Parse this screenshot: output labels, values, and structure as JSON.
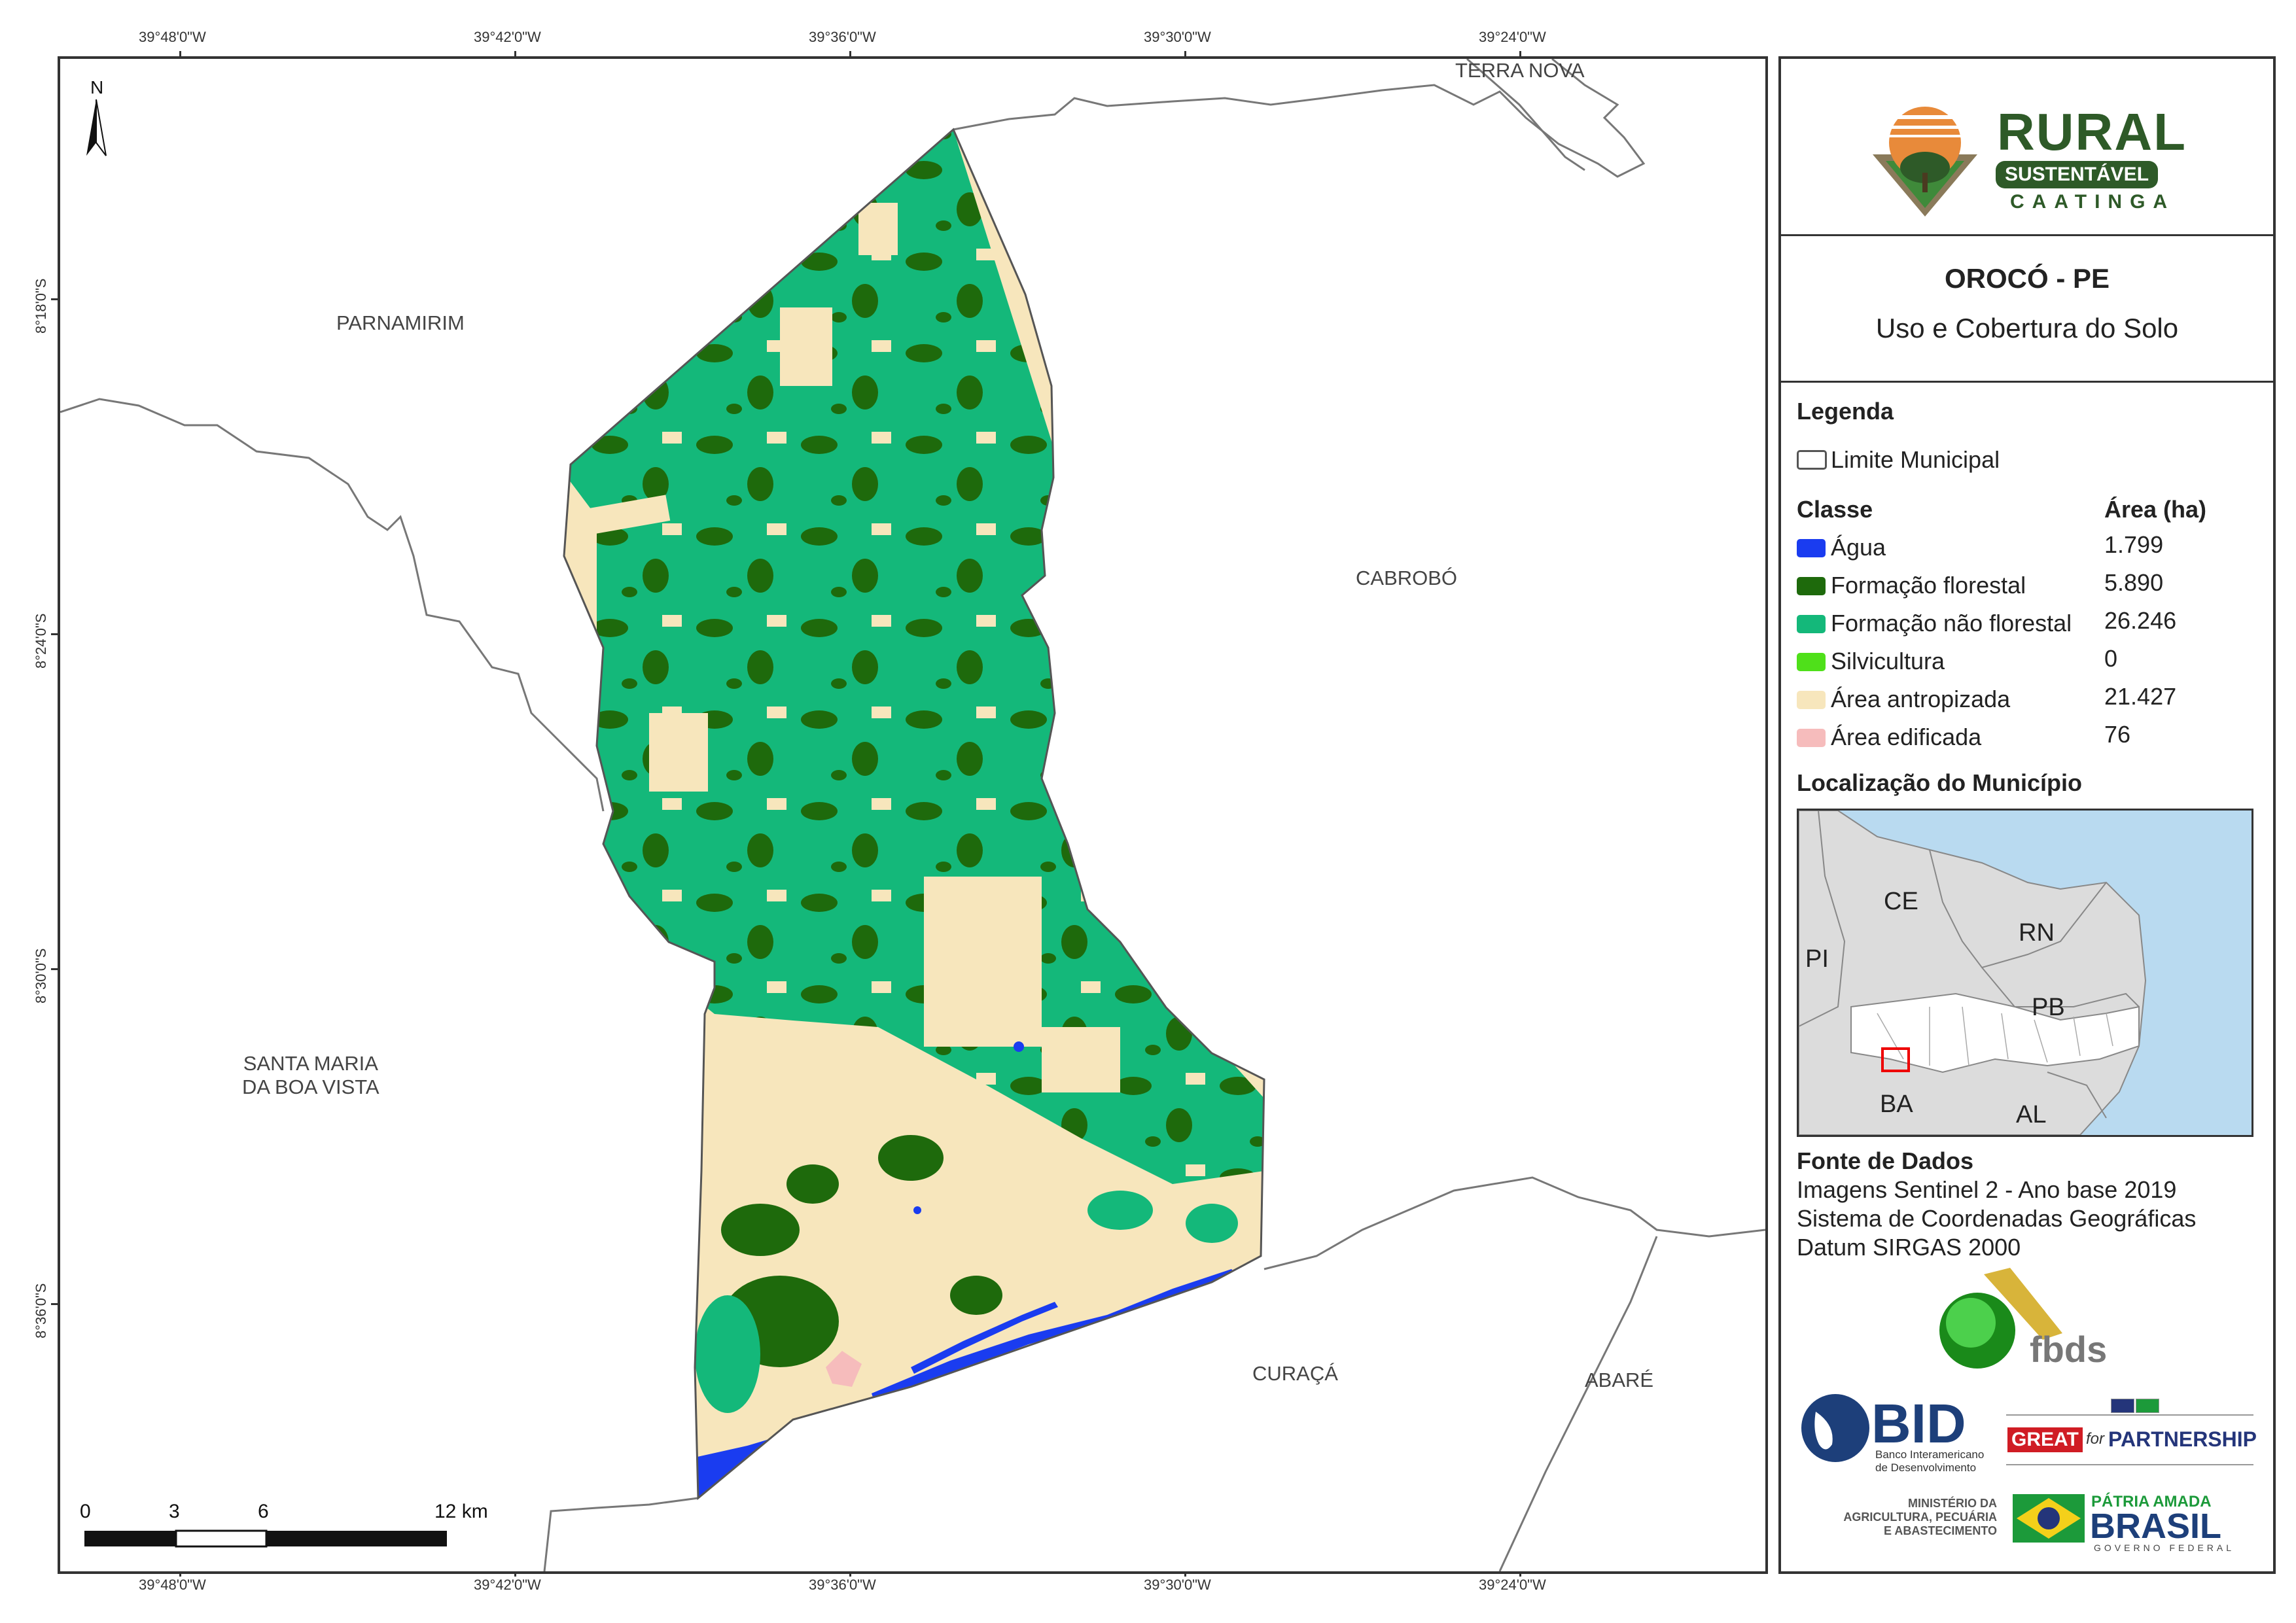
{
  "coordinates": {
    "lon_labels": [
      "39°48'0\"W",
      "39°42'0\"W",
      "39°36'0\"W",
      "39°30'0\"W",
      "39°24'0\"W"
    ],
    "lat_labels": [
      "8°18'0\"S",
      "8°24'0\"S",
      "8°30'0\"S",
      "8°36'0\"S"
    ]
  },
  "map": {
    "north": "N",
    "neighbors": {
      "terra_nova": "TERRA NOVA",
      "parnamirim": "PARNAMIRIM",
      "cabrobo": "CABROBÓ",
      "santa_maria_1": "SANTA MARIA",
      "santa_maria_2": "DA BOA VISTA",
      "curaca": "CURAÇÁ",
      "abare": "ABARÉ"
    },
    "scale": {
      "l0": "0",
      "l1": "3",
      "l2": "6",
      "l3": "12 km"
    }
  },
  "logo": {
    "rural": "RURAL",
    "sustentavel": "SUSTENTÁVEL",
    "caatinga": "CAATINGA"
  },
  "title": {
    "main": "OROCÓ - PE",
    "sub": "Uso e Cobertura do Solo"
  },
  "legend": {
    "heading": "Legenda",
    "limit": "Limite Municipal",
    "class_header": "Classe",
    "area_header": "Área (ha)",
    "classes": [
      {
        "name": "Água",
        "area": "1.799",
        "color": "#1a3cf0"
      },
      {
        "name": "Formação florestal",
        "area": "5.890",
        "color": "#1e6a0c"
      },
      {
        "name": "Formação não florestal",
        "area": "26.246",
        "color": "#14b87a"
      },
      {
        "name": "Silvicultura",
        "area": "0",
        "color": "#4fe01a"
      },
      {
        "name": "Área antropizada",
        "area": "21.427",
        "color": "#f7e6bc"
      },
      {
        "name": "Área edificada",
        "area": "76",
        "color": "#f6bcbc"
      }
    ]
  },
  "location": {
    "heading": "Localização do Município",
    "states": {
      "ce": "CE",
      "rn": "RN",
      "pi": "PI",
      "pb": "PB",
      "ba": "BA",
      "al": "AL"
    }
  },
  "sources": {
    "heading": "Fonte de Dados",
    "line1": "Imagens Sentinel 2 - Ano base 2019",
    "line2": "Sistema de Coordenadas Geográficas",
    "line3": "Datum SIRGAS 2000"
  },
  "partners": {
    "fbds": "fbds",
    "bid": "BID",
    "bid_sub1": "Banco Interamericano",
    "bid_sub2": "de Desenvolvimento",
    "great": "GREAT",
    "for": "for",
    "partnership": "PARTNERSHIP",
    "min1": "MINISTÉRIO DA",
    "min2": "AGRICULTURA, PECUÁRIA",
    "min3": "E ABASTECIMENTO",
    "patria": "PÁTRIA AMADA",
    "brasil": "BRASIL",
    "gov": "GOVERNO FEDERAL"
  }
}
